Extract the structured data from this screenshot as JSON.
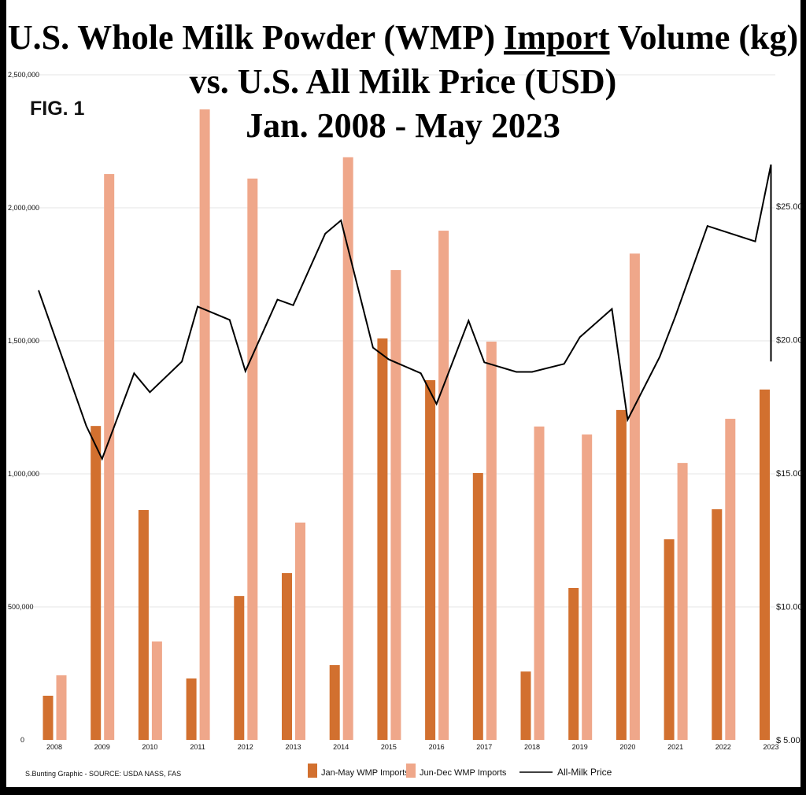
{
  "chart_data": {
    "type": "bar",
    "title_lines": [
      "U.S. Whole Milk Powder (WMP) ",
      "Import",
      " Volume (kg)",
      "vs. U.S. All Milk Price (USD)",
      "Jan. 2008 - May 2023"
    ],
    "fig_label": "FIG. 1",
    "source": "S.Bunting Graphic - SOURCE: USDA NASS, FAS",
    "categories": [
      "2008",
      "2009",
      "2010",
      "2011",
      "2012",
      "2013",
      "2014",
      "2015",
      "2016",
      "2017",
      "2018",
      "2019",
      "2020",
      "2021",
      "2022",
      "2023"
    ],
    "left_axis": {
      "ylim": [
        0,
        2500000
      ],
      "ticks": [
        "0",
        "500,000",
        "1,000,000",
        "1,500,000",
        "2,000,000",
        "2,500,000"
      ],
      "tick_values": [
        0,
        500000,
        1000000,
        1500000,
        2000000,
        2500000
      ]
    },
    "right_axis": {
      "ylim": [
        5,
        25
      ],
      "ticks": [
        "$ 5.00",
        "$10.00",
        "$15.00",
        "$20.00",
        "$25.00"
      ],
      "tick_values": [
        5,
        10,
        15,
        20,
        25
      ]
    },
    "grid": true,
    "legend_position": "bottom",
    "series": [
      {
        "name": "Jan-May WMP Imports",
        "type": "bar",
        "color": "#D2702F",
        "values": [
          166000,
          1180000,
          864000,
          231000,
          541000,
          627000,
          281000,
          1509000,
          1352000,
          1003000,
          257000,
          571000,
          1240000,
          754000,
          867000,
          1317000
        ]
      },
      {
        "name": "Jun-Dec WMP Imports",
        "type": "bar",
        "color": "#EFA78A",
        "values": [
          243000,
          2127000,
          370000,
          2370000,
          2110000,
          817000,
          2190000,
          1766000,
          1914000,
          1497000,
          1178000,
          1148000,
          1828000,
          1041000,
          1207000,
          null
        ]
      },
      {
        "name": "All-Milk Price",
        "type": "line",
        "axis": "right",
        "color": "#000000",
        "points": [
          [
            2007.67,
            21.85
          ],
          [
            2008.67,
            16.76
          ],
          [
            2009.0,
            15.53
          ],
          [
            2009.67,
            18.74
          ],
          [
            2010.0,
            18.03
          ],
          [
            2010.67,
            19.18
          ],
          [
            2011.0,
            21.24
          ],
          [
            2011.67,
            20.74
          ],
          [
            2012.0,
            18.82
          ],
          [
            2012.67,
            21.5
          ],
          [
            2013.0,
            21.29
          ],
          [
            2013.67,
            23.97
          ],
          [
            2014.0,
            24.47
          ],
          [
            2014.67,
            19.7
          ],
          [
            2015.0,
            19.26
          ],
          [
            2015.67,
            18.74
          ],
          [
            2016.0,
            17.59
          ],
          [
            2016.67,
            20.71
          ],
          [
            2017.0,
            19.15
          ],
          [
            2017.67,
            18.79
          ],
          [
            2018.0,
            18.79
          ],
          [
            2018.67,
            19.09
          ],
          [
            2019.0,
            20.09
          ],
          [
            2019.67,
            21.15
          ],
          [
            2020.0,
            17.0
          ],
          [
            2020.67,
            19.35
          ],
          [
            2021.0,
            20.88
          ],
          [
            2021.67,
            24.26
          ],
          [
            2022.67,
            23.68
          ],
          [
            2023.0,
            26.56
          ],
          [
            2023.0,
            19.18
          ]
        ]
      }
    ]
  }
}
